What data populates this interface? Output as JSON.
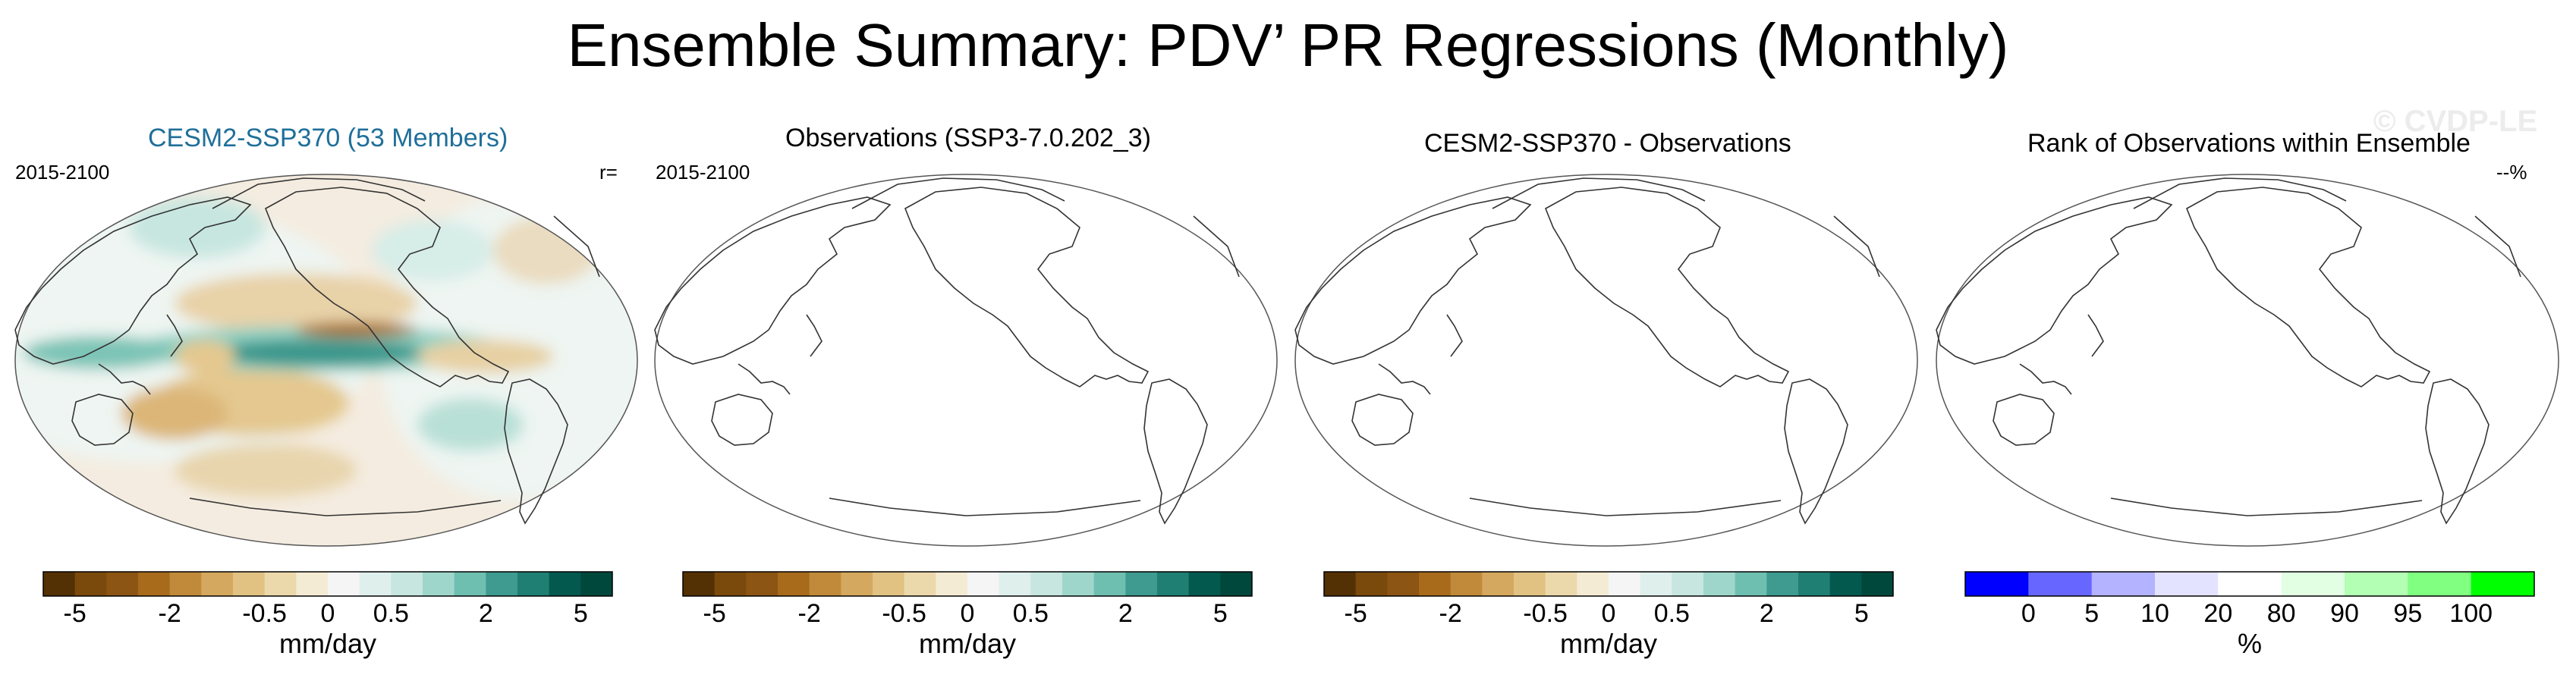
{
  "page_title": "Ensemble Summary: PDV’ PR Regressions (Monthly)",
  "watermark": "© CVDP-LE",
  "colors": {
    "panel1_title": "#1f6f9a",
    "coast": "#333333",
    "brown_green": [
      "#543005",
      "#7a4a0c",
      "#8c5514",
      "#a86b1c",
      "#c08a3a",
      "#d4a85f",
      "#e1c283",
      "#ecd9ab",
      "#f4ebd4",
      "#f5f5f5",
      "#dfefec",
      "#c7e6e0",
      "#9fd6cb",
      "#6fbfb1",
      "#3f9b8f",
      "#1f7f73",
      "#04594f",
      "#00473c"
    ],
    "rank": [
      "#0000ff",
      "#6767ff",
      "#b3b3ff",
      "#e3e3ff",
      "#ffffff",
      "#e3ffe3",
      "#b3ffb3",
      "#80ff80",
      "#00ff00"
    ]
  },
  "panels": [
    {
      "title": "CESM2-SSP370 (53 Members)",
      "left_label": "2015-2100",
      "right_label": "r="
    },
    {
      "title": "Observations (SSP3-7.0.202_3)",
      "left_label": "2015-2100",
      "right_label": ""
    },
    {
      "title": "CESM2-SSP370 - Observations",
      "left_label": "",
      "right_label": ""
    },
    {
      "title": "Rank of Observations within Ensemble",
      "left_label": "",
      "right_label": "--%"
    }
  ],
  "chart_data": [
    {
      "type": "heatmap",
      "title": "CESM2-SSP370 (53 Members)",
      "period": "2015-2100",
      "field": "PR regression on PDV",
      "units": "mm/day",
      "colorbar_ticks": [
        "-5",
        "-2",
        "-0.5",
        "0",
        "0.5",
        "2",
        "5"
      ],
      "colorbar_label": "mm/day",
      "pattern": "positive (green) anomalies along equatorial central Pacific, negative (brown) anomalies off-equator and western Pacific"
    },
    {
      "type": "heatmap",
      "title": "Observations (SSP3-7.0.202_3)",
      "period": "2015-2100",
      "field": "empty",
      "colorbar_ticks": [
        "-5",
        "-2",
        "-0.5",
        "0",
        "0.5",
        "2",
        "5"
      ],
      "colorbar_label": "mm/day"
    },
    {
      "type": "heatmap",
      "title": "CESM2-SSP370 - Observations",
      "field": "empty",
      "colorbar_ticks": [
        "-5",
        "-2",
        "-0.5",
        "0",
        "0.5",
        "2",
        "5"
      ],
      "colorbar_label": "mm/day"
    },
    {
      "type": "heatmap",
      "title": "Rank of Observations within Ensemble",
      "field": "empty",
      "colorbar_ticks": [
        "0",
        "5",
        "10",
        "20",
        "80",
        "90",
        "95",
        "100"
      ],
      "colorbar_label": "%",
      "summary": "--%"
    }
  ],
  "colorbar": {
    "diverging_ticks": [
      "-5",
      "-2",
      "-0.5",
      "0",
      "0.5",
      "2",
      "5"
    ],
    "diverging_label": "mm/day",
    "rank_ticks": [
      "0",
      "5",
      "10",
      "20",
      "80",
      "90",
      "95",
      "100"
    ],
    "rank_label": "%"
  }
}
